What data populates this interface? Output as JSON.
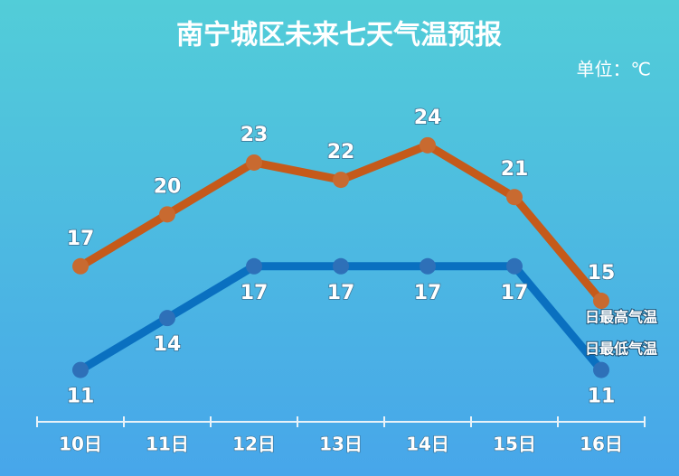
{
  "chart_data": {
    "type": "line",
    "title": "南宁城区未来七天气温预报",
    "unit_label": "单位：℃",
    "categories": [
      "10日",
      "11日",
      "12日",
      "13日",
      "14日",
      "15日",
      "16日"
    ],
    "series": [
      {
        "name": "日最高气温",
        "color": "#c55a1a",
        "values": [
          17,
          20,
          23,
          22,
          24,
          21,
          15
        ]
      },
      {
        "name": "日最低气温",
        "color": "#0a70c0",
        "values": [
          11,
          14,
          17,
          17,
          17,
          17,
          11
        ]
      }
    ],
    "ylim": [
      8,
      30
    ]
  }
}
